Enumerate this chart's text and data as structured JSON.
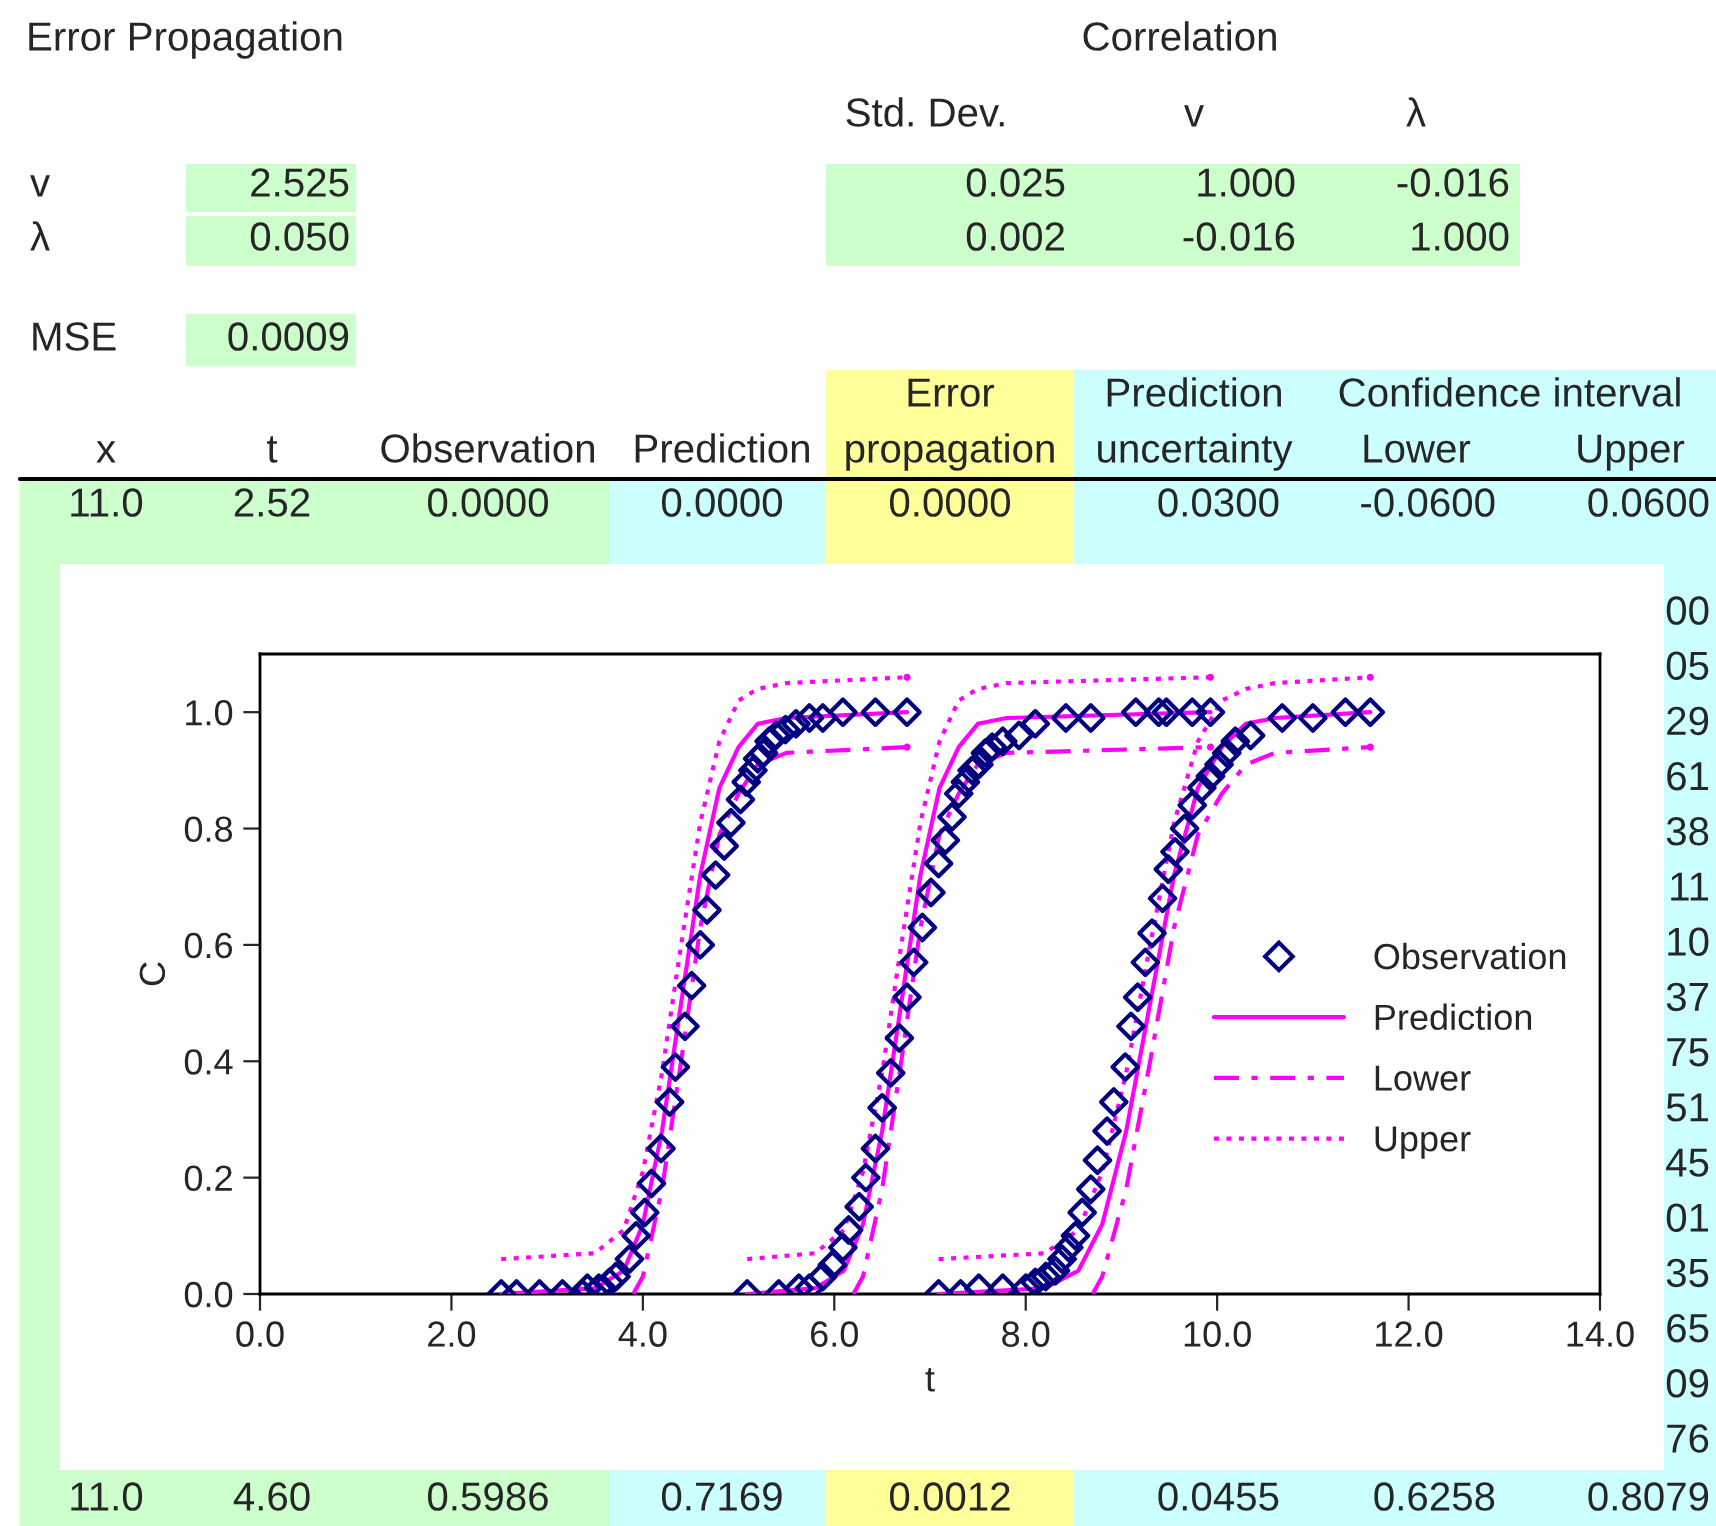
{
  "chart_data": [
    {
      "type": "other",
      "annotations": [
        "Error Propagation",
        "Correlation",
        "Std. Dev.",
        "v",
        "λ",
        "v",
        "2.525",
        "0.025",
        "1.000",
        "-0.016",
        "λ",
        "0.050",
        "0.002",
        "-0.016",
        "1.000",
        "MSE",
        "0.0009",
        "Error",
        "Prediction",
        "Confidence interval",
        "x",
        "t",
        "Observation",
        "Prediction",
        "propagation",
        "uncertainty",
        "Lower",
        "Upper",
        "11.0",
        "2.52",
        "0.0000",
        "0.0000",
        "0.0000",
        "0.0300",
        "-0.0600",
        "0.0600",
        "00",
        "05",
        "29",
        "61",
        "38",
        "11",
        "10",
        "37",
        "75",
        "51",
        "45",
        "01",
        "35",
        "65",
        "09",
        "76",
        "11.0",
        "4.60",
        "0.5986",
        "0.7169",
        "0.0012",
        "0.0455",
        "0.6258",
        "0.8079"
      ]
    },
    {
      "type": "scatter",
      "xlabel": "t",
      "ylabel": "C",
      "xlim": [
        0,
        14
      ],
      "xticks": [
        {
          "value": 0,
          "label": "0.0"
        },
        {
          "value": 2,
          "label": "2.0"
        },
        {
          "value": 4,
          "label": "4.0"
        },
        {
          "value": 6,
          "label": "6.0"
        },
        {
          "value": 8,
          "label": "8.0"
        },
        {
          "value": 10,
          "label": "10.0"
        },
        {
          "value": 12,
          "label": "12.0"
        },
        {
          "value": 14,
          "label": "14.0"
        }
      ],
      "ylim": [
        0,
        1.1
      ],
      "yticks": [
        {
          "value": 0,
          "label": "0.0"
        },
        {
          "value": 0.2,
          "label": "0.2"
        },
        {
          "value": 0.4,
          "label": "0.4"
        },
        {
          "value": 0.6,
          "label": "0.6"
        },
        {
          "value": 0.8,
          "label": "0.8"
        },
        {
          "value": 1,
          "label": "1.0"
        }
      ],
      "legend": "right",
      "grid": false,
      "series": [
        {
          "name": "Observation",
          "type": "scatter",
          "marker": "diamond",
          "color": "#000080",
          "x": [
            2.52,
            2.68,
            2.92,
            3.16,
            3.37,
            3.42,
            3.54,
            3.65,
            3.72,
            3.86,
            3.93,
            4.02,
            4.09,
            4.19,
            4.28,
            4.34,
            4.44,
            4.51,
            4.6,
            4.67,
            4.76,
            4.85,
            4.92,
            5.02,
            5.08,
            5.15,
            5.2,
            5.26,
            5.32,
            5.39,
            5.49,
            5.6,
            5.74,
            5.88,
            6.09,
            6.43,
            6.76,
            5.09,
            5.42,
            5.63,
            5.74,
            5.88,
            5.98,
            6.09,
            6.15,
            6.26,
            6.33,
            6.43,
            6.5,
            6.59,
            6.68,
            6.76,
            6.83,
            6.92,
            7.01,
            7.09,
            7.16,
            7.23,
            7.3,
            7.37,
            7.44,
            7.51,
            7.58,
            7.65,
            7.76,
            7.93,
            8.1,
            8.42,
            8.68,
            9.15,
            9.39,
            9.47,
            9.74,
            9.93,
            7.09,
            7.32,
            7.51,
            7.76,
            8.0,
            8.1,
            8.21,
            8.31,
            8.38,
            8.45,
            8.52,
            8.59,
            8.68,
            8.75,
            8.85,
            8.92,
            9.04,
            9.1,
            9.17,
            9.25,
            9.32,
            9.43,
            9.49,
            9.56,
            9.66,
            9.74,
            9.84,
            9.93,
            10.02,
            10.1,
            10.19,
            10.35,
            10.68,
            11.0,
            11.34,
            11.6
          ],
          "values": [
            0,
            0,
            0,
            0,
            0,
            0.01,
            0.01,
            0.02,
            0.03,
            0.06,
            0.1,
            0.14,
            0.19,
            0.25,
            0.33,
            0.39,
            0.46,
            0.53,
            0.6,
            0.66,
            0.72,
            0.77,
            0.81,
            0.85,
            0.88,
            0.9,
            0.92,
            0.93,
            0.95,
            0.96,
            0.97,
            0.98,
            0.99,
            0.99,
            1,
            1,
            1,
            0,
            0,
            0.01,
            0.01,
            0.03,
            0.05,
            0.08,
            0.11,
            0.15,
            0.2,
            0.25,
            0.32,
            0.38,
            0.44,
            0.51,
            0.57,
            0.63,
            0.69,
            0.74,
            0.78,
            0.82,
            0.86,
            0.88,
            0.9,
            0.91,
            0.93,
            0.94,
            0.95,
            0.96,
            0.98,
            0.99,
            0.99,
            1,
            1,
            1,
            1,
            1,
            0,
            0,
            0.01,
            0.01,
            0.01,
            0.02,
            0.03,
            0.04,
            0.06,
            0.08,
            0.1,
            0.14,
            0.18,
            0.23,
            0.28,
            0.33,
            0.39,
            0.46,
            0.51,
            0.57,
            0.62,
            0.68,
            0.73,
            0.76,
            0.8,
            0.84,
            0.87,
            0.89,
            0.91,
            0.93,
            0.95,
            0.96,
            0.99,
            0.99,
            1,
            1
          ]
        },
        {
          "name": "Prediction",
          "type": "line",
          "marker": "none",
          "line_style": "solid",
          "color": "#ff00ff",
          "x": [
            2.52,
            3.5,
            3.8,
            4.0,
            4.2,
            4.4,
            4.6,
            4.8,
            5.0,
            5.2,
            5.5,
            6.76
          ],
          "values": [
            0,
            0.01,
            0.04,
            0.12,
            0.28,
            0.5,
            0.72,
            0.87,
            0.94,
            0.98,
            0.99,
            1
          ]
        },
        {
          "type": "line",
          "marker": "none",
          "line_style": "solid",
          "color": "#ff00ff",
          "x": [
            5.09,
            5.8,
            6.1,
            6.3,
            6.5,
            6.7,
            6.9,
            7.1,
            7.3,
            7.5,
            7.8,
            9.93
          ],
          "values": [
            0,
            0.01,
            0.04,
            0.12,
            0.28,
            0.5,
            0.72,
            0.87,
            0.94,
            0.98,
            0.99,
            1
          ]
        },
        {
          "type": "line",
          "marker": "none",
          "line_style": "solid",
          "color": "#ff00ff",
          "x": [
            7.09,
            8.2,
            8.55,
            8.8,
            9.05,
            9.3,
            9.55,
            9.8,
            10.05,
            10.3,
            10.6,
            11.6
          ],
          "values": [
            0,
            0.01,
            0.04,
            0.12,
            0.28,
            0.5,
            0.72,
            0.87,
            0.94,
            0.98,
            0.99,
            1
          ]
        },
        {
          "name": "Lower",
          "type": "line",
          "marker": "none",
          "line_style": "dashdot",
          "color": "#ff00ff",
          "x": [
            3.9,
            4.0,
            4.2,
            4.4,
            4.6,
            4.8,
            5.0,
            5.2,
            5.5,
            6.76
          ],
          "values": [
            0,
            0.03,
            0.18,
            0.4,
            0.63,
            0.79,
            0.86,
            0.91,
            0.93,
            0.94
          ]
        },
        {
          "type": "line",
          "marker": "none",
          "line_style": "dashdot",
          "color": "#ff00ff",
          "x": [
            6.2,
            6.3,
            6.5,
            6.7,
            6.9,
            7.1,
            7.3,
            7.5,
            7.8,
            9.93
          ],
          "values": [
            0,
            0.03,
            0.18,
            0.4,
            0.63,
            0.79,
            0.86,
            0.91,
            0.93,
            0.94
          ]
        },
        {
          "type": "line",
          "marker": "none",
          "line_style": "dashdot",
          "color": "#ff00ff",
          "x": [
            8.7,
            8.8,
            9.05,
            9.3,
            9.55,
            9.8,
            10.05,
            10.3,
            10.6,
            11.6
          ],
          "values": [
            0,
            0.03,
            0.18,
            0.4,
            0.63,
            0.79,
            0.86,
            0.91,
            0.93,
            0.94
          ]
        },
        {
          "name": "Upper",
          "type": "line",
          "marker": "none",
          "line_style": "dotted",
          "color": "#ff00ff",
          "x": [
            2.52,
            3.5,
            3.8,
            4.0,
            4.2,
            4.4,
            4.6,
            4.8,
            5.0,
            5.2,
            5.5,
            6.76
          ],
          "values": [
            0.06,
            0.07,
            0.11,
            0.21,
            0.38,
            0.6,
            0.81,
            0.95,
            1.02,
            1.04,
            1.05,
            1.06
          ]
        },
        {
          "type": "line",
          "marker": "none",
          "line_style": "dotted",
          "color": "#ff00ff",
          "x": [
            5.09,
            5.8,
            6.1,
            6.3,
            6.5,
            6.7,
            6.9,
            7.1,
            7.3,
            7.5,
            7.8,
            9.93
          ],
          "values": [
            0.06,
            0.07,
            0.11,
            0.21,
            0.38,
            0.6,
            0.81,
            0.95,
            1.02,
            1.04,
            1.05,
            1.06
          ]
        },
        {
          "type": "line",
          "marker": "none",
          "line_style": "dotted",
          "color": "#ff00ff",
          "x": [
            7.09,
            8.2,
            8.55,
            8.8,
            9.05,
            9.3,
            9.55,
            9.8,
            10.05,
            10.3,
            10.6,
            11.6
          ],
          "values": [
            0.06,
            0.07,
            0.11,
            0.21,
            0.38,
            0.6,
            0.81,
            0.95,
            1.02,
            1.04,
            1.05,
            1.06
          ]
        }
      ]
    }
  ]
}
